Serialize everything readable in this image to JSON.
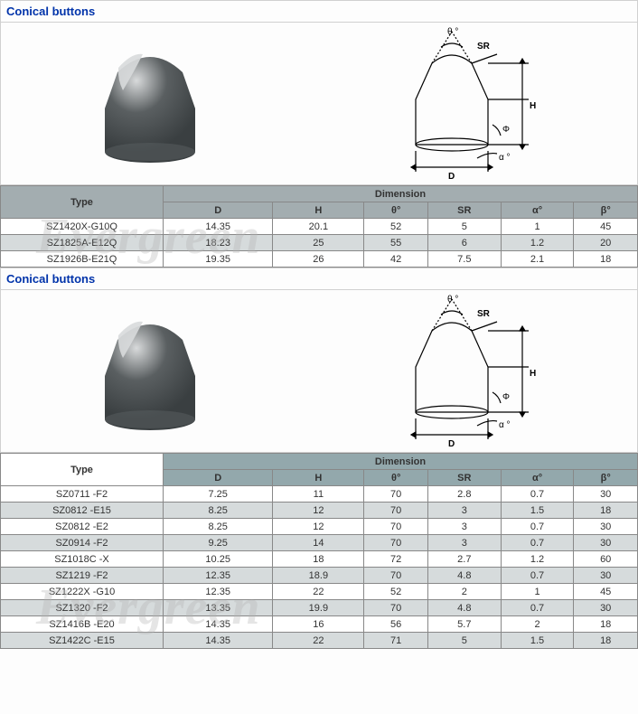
{
  "watermark": "Evergreen",
  "sections": [
    {
      "title": "Conical buttons",
      "table_style": "gray",
      "type_header": "Type",
      "dim_header": "Dimension",
      "columns": [
        "D",
        "H",
        "θ°",
        "SR",
        "α°",
        "β°"
      ],
      "rows": [
        {
          "type": "SZ1420X-G10Q",
          "vals": [
            "14.35",
            "20.1",
            "52",
            "5",
            "1",
            "45"
          ],
          "shade": "white"
        },
        {
          "type": "SZ1825A-E12Q",
          "vals": [
            "18.23",
            "25",
            "55",
            "6",
            "1.2",
            "20"
          ],
          "shade": "gray"
        },
        {
          "type": "SZ1926B-E21Q",
          "vals": [
            "19.35",
            "26",
            "42",
            "7.5",
            "2.1",
            "18"
          ],
          "shade": "white"
        }
      ]
    },
    {
      "title": "Conical buttons",
      "table_style": "teal",
      "type_header": "Type",
      "dim_header": "Dimension",
      "columns": [
        "D",
        "H",
        "θ°",
        "SR",
        "α°",
        "β°"
      ],
      "rows": [
        {
          "type": "SZ0711 -F2",
          "vals": [
            "7.25",
            "11",
            "70",
            "2.8",
            "0.7",
            "30"
          ],
          "shade": "white"
        },
        {
          "type": "SZ0812 -E15",
          "vals": [
            "8.25",
            "12",
            "70",
            "3",
            "1.5",
            "18"
          ],
          "shade": "gray"
        },
        {
          "type": "SZ0812 -E2",
          "vals": [
            "8.25",
            "12",
            "70",
            "3",
            "0.7",
            "30"
          ],
          "shade": "white"
        },
        {
          "type": "SZ0914 -F2",
          "vals": [
            "9.25",
            "14",
            "70",
            "3",
            "0.7",
            "30"
          ],
          "shade": "gray"
        },
        {
          "type": "SZ1018C -X",
          "vals": [
            "10.25",
            "18",
            "72",
            "2.7",
            "1.2",
            "60"
          ],
          "shade": "white"
        },
        {
          "type": "SZ1219 -F2",
          "vals": [
            "12.35",
            "18.9",
            "70",
            "4.8",
            "0.7",
            "30"
          ],
          "shade": "gray"
        },
        {
          "type": "SZ1222X -G10",
          "vals": [
            "12.35",
            "22",
            "52",
            "2",
            "1",
            "45"
          ],
          "shade": "white"
        },
        {
          "type": "SZ1320 -F2",
          "vals": [
            "13.35",
            "19.9",
            "70",
            "4.8",
            "0.7",
            "30"
          ],
          "shade": "gray"
        },
        {
          "type": "SZ1416B -E20",
          "vals": [
            "14.35",
            "16",
            "56",
            "5.7",
            "2",
            "18"
          ],
          "shade": "white"
        },
        {
          "type": "SZ1422C -E15",
          "vals": [
            "14.35",
            "22",
            "71",
            "5",
            "1.5",
            "18"
          ],
          "shade": "gray"
        }
      ]
    }
  ],
  "diagram_labels": {
    "theta": "θ °",
    "sr": "SR",
    "h": "H",
    "d": "D",
    "alpha": "α °",
    "beta": "Φ"
  },
  "colors": {
    "title_text": "#0033aa",
    "header_gray": "#a3adb0",
    "header_teal": "#93a8ac",
    "row_gray": "#d6dbdc",
    "border": "#888888"
  },
  "photo_colors": {
    "body": "#5a5f61",
    "hl": "#d8dadb",
    "dark": "#3a3f41"
  },
  "schematic_stroke": "#000000"
}
